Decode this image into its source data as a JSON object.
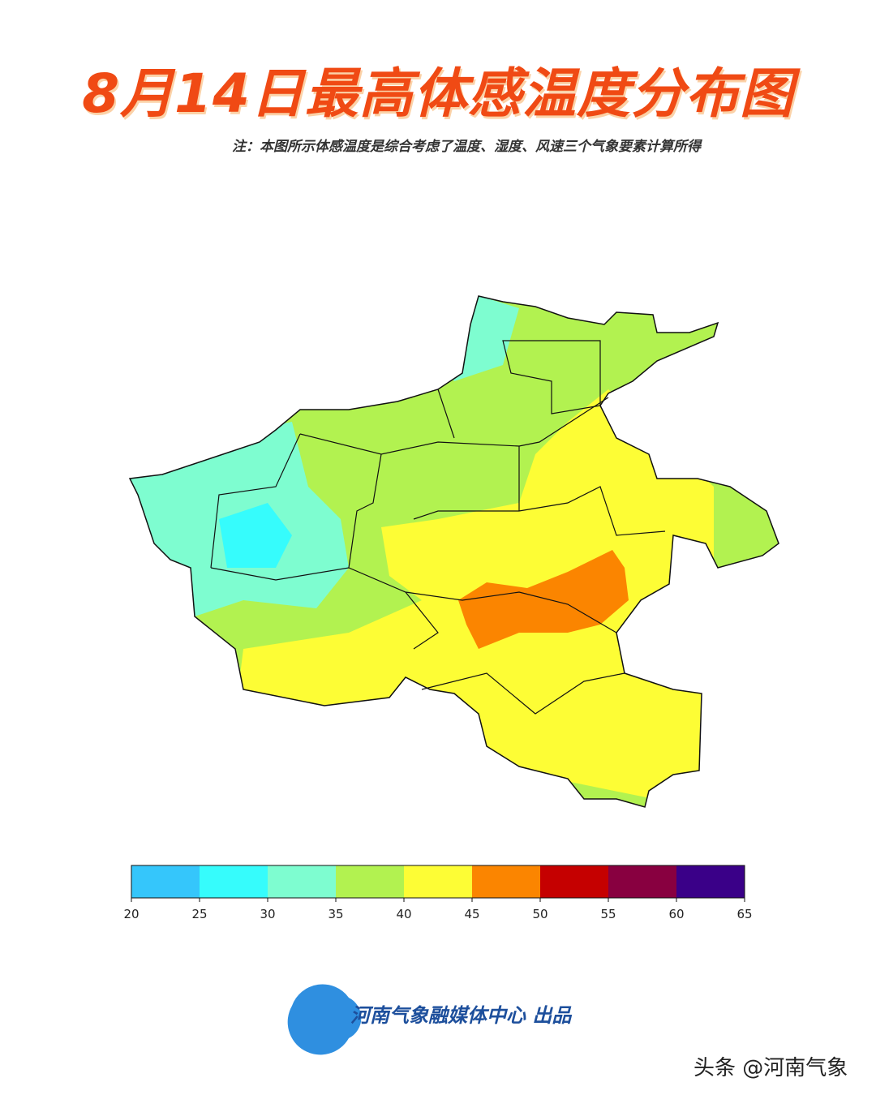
{
  "title": "8月14日最高体感温度分布图",
  "note": "注：本图所示体感温度是综合考虑了温度、湿度、风速三个气象要素计算所得",
  "colorbar": {
    "ticks": [
      20,
      25,
      30,
      35,
      40,
      45,
      50,
      55,
      60,
      65
    ],
    "colors": [
      "#35c6fb",
      "#36fcfc",
      "#7efdd0",
      "#b2f250",
      "#fdfd35",
      "#fb8500",
      "#c50000",
      "#880040",
      "#3a0088"
    ]
  },
  "credit": "河南气象融媒体中心 出品",
  "watermark": "头条 @河南气象"
}
